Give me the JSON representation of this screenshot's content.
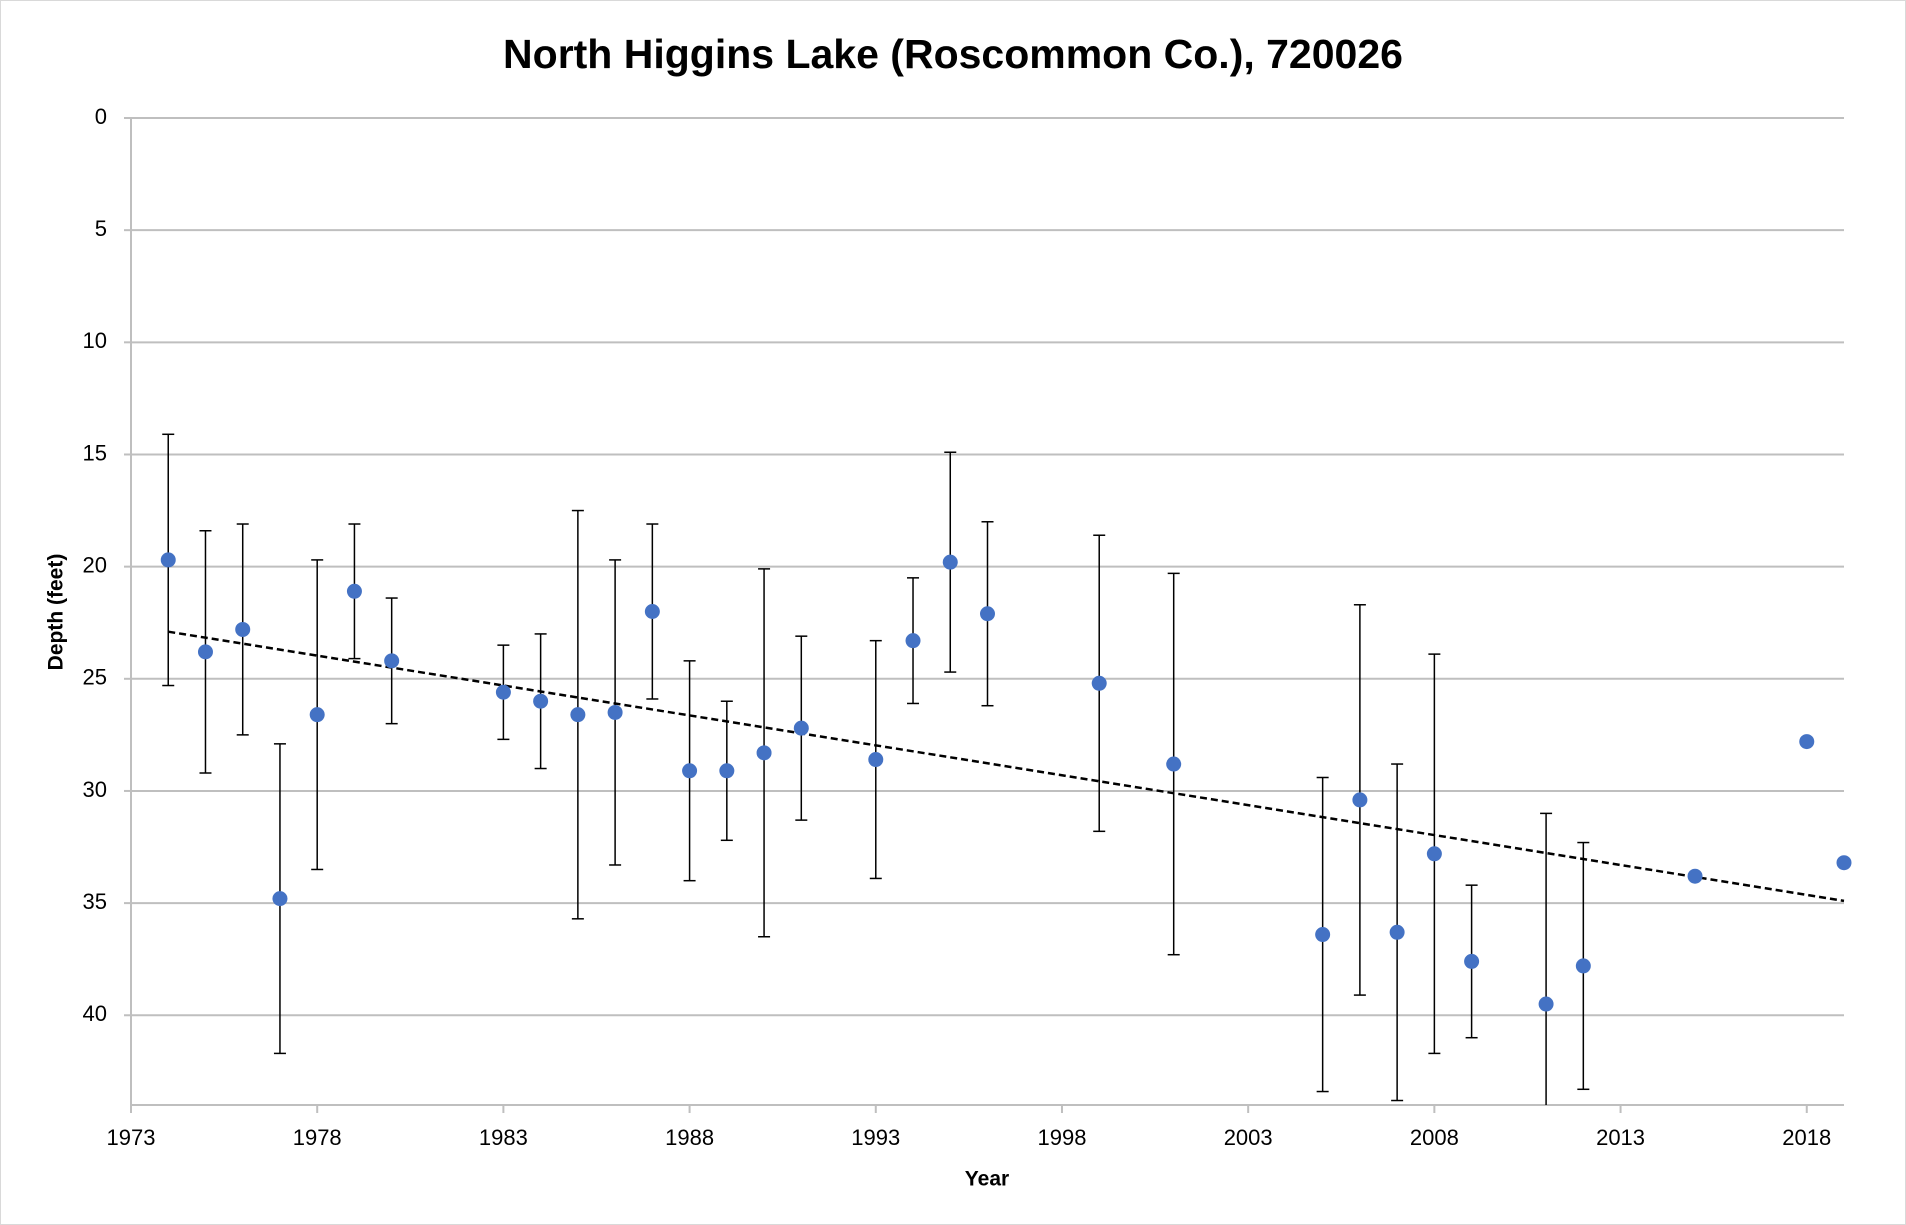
{
  "chart_data": {
    "type": "scatter",
    "title": "North Higgins Lake (Roscommon Co.), 720026",
    "x_label": "Year",
    "y_label": "Depth (feet)",
    "x": [
      1974,
      1975,
      1976,
      1977,
      1978,
      1979,
      1980,
      1983,
      1984,
      1985,
      1986,
      1987,
      1988,
      1989,
      1990,
      1991,
      1993,
      1994,
      1995,
      1996,
      1999,
      2001,
      2005,
      2006,
      2007,
      2008,
      2009,
      2011,
      2012,
      2015,
      2018,
      2019
    ],
    "values": [
      19.7,
      23.8,
      22.8,
      34.8,
      26.6,
      21.1,
      24.2,
      25.6,
      26.0,
      26.6,
      26.5,
      22.0,
      29.1,
      29.1,
      28.3,
      27.2,
      28.6,
      23.3,
      19.8,
      22.1,
      25.2,
      28.8,
      36.4,
      30.4,
      36.3,
      32.8,
      37.6,
      39.5,
      37.8,
      33.8,
      27.8,
      33.2
    ],
    "errors": [
      5.6,
      5.4,
      4.7,
      6.9,
      6.9,
      3.0,
      2.8,
      2.1,
      3.0,
      9.1,
      6.8,
      3.9,
      4.9,
      3.1,
      8.2,
      4.1,
      5.3,
      2.8,
      4.9,
      4.1,
      6.6,
      8.5,
      7.0,
      8.7,
      7.5,
      8.9,
      3.4,
      8.5,
      5.5,
      null,
      null,
      null
    ],
    "color": "#4472c4",
    "trendline": {
      "x": [
        1974,
        2019
      ],
      "values": [
        22.9,
        34.9
      ],
      "color": "#000000",
      "dashed": true
    },
    "xlim": [
      1973,
      2019
    ],
    "xticks": [
      1973,
      1978,
      1983,
      1988,
      1993,
      1998,
      2003,
      2008,
      2013,
      2018
    ],
    "ylim": [
      0,
      44
    ],
    "yticks": [
      0,
      5,
      10,
      15,
      20,
      25,
      30,
      35,
      40
    ],
    "y_reversed": true,
    "grid": true
  }
}
